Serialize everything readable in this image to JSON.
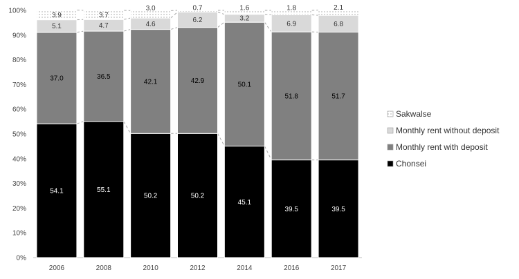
{
  "chart_data": {
    "type": "bar",
    "stacked": true,
    "percent_stacked": true,
    "categories": [
      "2006",
      "2008",
      "2010",
      "2012",
      "2014",
      "2016",
      "2017"
    ],
    "series": [
      {
        "name": "Chonsei",
        "values": [
          54.1,
          55.1,
          50.2,
          50.2,
          45.1,
          39.5,
          39.5
        ],
        "color": "#000000"
      },
      {
        "name": "Monthly rent with deposit",
        "values": [
          37.0,
          36.5,
          42.1,
          42.9,
          50.1,
          51.8,
          51.7
        ],
        "color": "#808080"
      },
      {
        "name": "Monthly rent without deposit",
        "values": [
          5.1,
          4.7,
          4.6,
          6.2,
          3.2,
          6.9,
          6.8
        ],
        "color": "#d9d9d9"
      },
      {
        "name": "Sakwalse",
        "values": [
          3.9,
          3.7,
          3.0,
          0.7,
          1.6,
          1.8,
          2.1
        ],
        "color": "#ffffff",
        "pattern": "dotted"
      }
    ],
    "y_ticks": [
      "0%",
      "10%",
      "20%",
      "30%",
      "40%",
      "50%",
      "60%",
      "70%",
      "80%",
      "90%",
      "100%"
    ],
    "ylim": [
      0,
      100
    ],
    "legend_position": "right",
    "series_lines": "dashed",
    "grid": false
  }
}
